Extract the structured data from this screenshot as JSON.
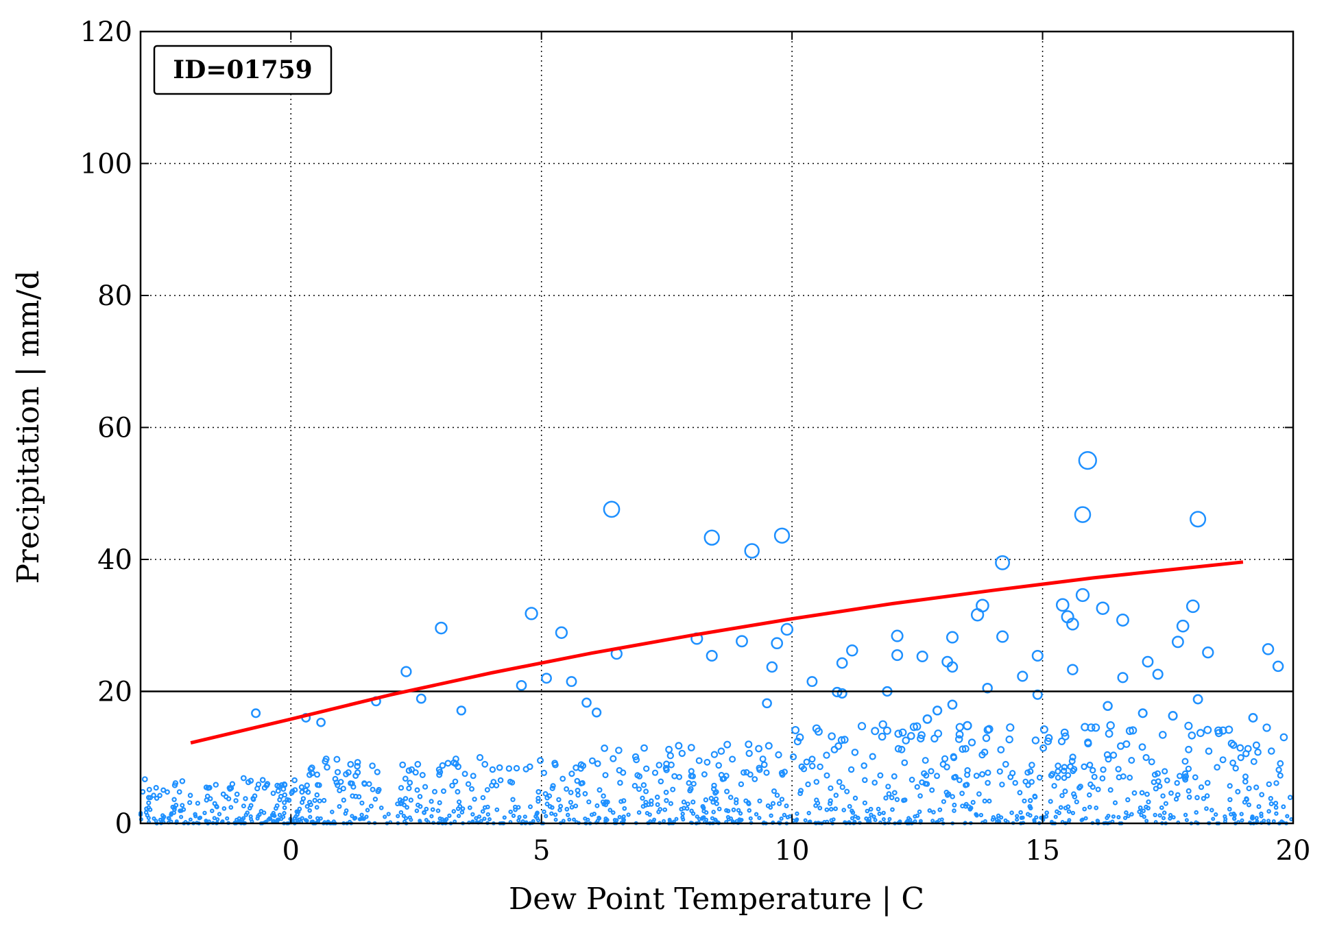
{
  "chart_data": {
    "type": "scatter",
    "annotation": "ID=01759",
    "xlabel": "Dew Point Temperature | C",
    "ylabel": "Precipitation | mm/d",
    "xlim": [
      -3,
      20
    ],
    "ylim": [
      0,
      120
    ],
    "xticks": [
      0,
      5,
      10,
      15,
      20
    ],
    "yticks": [
      0,
      20,
      40,
      60,
      80,
      100,
      120
    ],
    "grid": true,
    "reference_line_y": 20,
    "colors": {
      "points": "#1E90FF",
      "fit": "#FF0000",
      "reference": "#000000"
    },
    "fit_curve": {
      "x": [
        -2,
        0,
        2,
        4,
        6,
        8,
        10,
        12,
        14,
        16,
        18,
        19
      ],
      "y": [
        12.2,
        15.8,
        19.5,
        22.8,
        25.8,
        28.5,
        31.0,
        33.3,
        35.3,
        37.2,
        38.8,
        39.6
      ]
    },
    "series": [
      {
        "x": [
          6.4,
          8.4,
          9.2,
          9.8,
          15.9,
          15.8,
          18.1,
          14.2,
          4.8,
          3.0,
          5.4,
          2.3,
          2.6,
          0.6,
          -0.7,
          6.5,
          8.1,
          8.4,
          9.0,
          9.7,
          9.9,
          9.6,
          10.4,
          11.0,
          11.2,
          12.1,
          12.1,
          12.6,
          13.2,
          13.2,
          13.7,
          14.2,
          15.4,
          15.6,
          15.8,
          16.2,
          16.6,
          17.1,
          17.7,
          17.8,
          18.0,
          18.3,
          19.5,
          19.7,
          15.5,
          14.9,
          11.0,
          13.9,
          4.6,
          5.6,
          5.1,
          1.7,
          0.3,
          3.4,
          9.5,
          10.9,
          12.7,
          13.5,
          14.9,
          16.6,
          17.3,
          18.1,
          19.2,
          17.0,
          15.6,
          14.6,
          12.9,
          11.9,
          6.1,
          5.9,
          16.3,
          13.8,
          17.6,
          13.1,
          13.2
        ],
        "y": [
          47.6,
          43.3,
          41.3,
          43.6,
          55.0,
          46.8,
          46.1,
          39.5,
          31.8,
          29.6,
          28.9,
          23.0,
          18.9,
          15.3,
          16.7,
          25.7,
          28.0,
          25.4,
          27.6,
          27.3,
          29.4,
          23.7,
          21.5,
          24.3,
          26.2,
          28.4,
          25.5,
          25.3,
          28.2,
          23.7,
          31.6,
          28.3,
          33.1,
          30.2,
          34.6,
          32.6,
          30.8,
          24.5,
          27.5,
          29.9,
          32.9,
          25.9,
          26.4,
          23.8,
          31.3,
          25.4,
          19.7,
          20.5,
          20.9,
          21.5,
          22.0,
          18.5,
          16.0,
          17.1,
          18.2,
          19.9,
          15.8,
          14.8,
          19.5,
          22.1,
          22.6,
          18.8,
          16.0,
          16.7,
          23.3,
          22.3,
          17.1,
          20.0,
          16.8,
          18.3,
          17.8,
          33.0,
          16.3,
          24.5,
          18.0
        ]
      }
    ]
  }
}
